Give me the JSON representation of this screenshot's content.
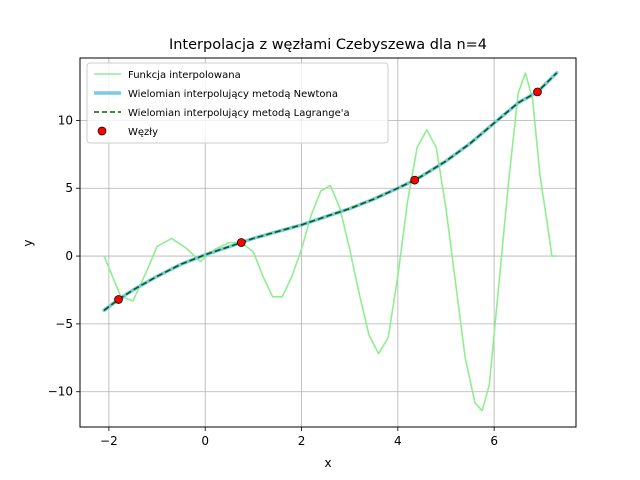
{
  "chart_data": {
    "type": "line",
    "title": "Interpolacja z węzłami Czebyszewa dla n=4",
    "xlabel": "x",
    "ylabel": "y",
    "xlim": [
      -2.6,
      7.7
    ],
    "ylim": [
      -12.6,
      14.6
    ],
    "xticks": [
      -2,
      0,
      2,
      4,
      6
    ],
    "yticks": [
      -10,
      -5,
      0,
      5,
      10
    ],
    "xtick_labels": [
      "−2",
      "0",
      "2",
      "4",
      "6"
    ],
    "ytick_labels": [
      "−10",
      "−5",
      "0",
      "5",
      "10"
    ],
    "grid": true,
    "legend_position": "top-left",
    "colors": {
      "function": "#90ee90",
      "newton": "#7ec8e3",
      "lagrange": "#006400",
      "nodes": "#ff0000",
      "grid": "#b0b0b0"
    },
    "series": [
      {
        "name": "Funkcja interpolowana",
        "style": "solid",
        "x": [
          -2.1,
          -1.75,
          -1.5,
          -1.2,
          -1.0,
          -0.7,
          -0.4,
          -0.1,
          0.2,
          0.5,
          0.75,
          1.0,
          1.2,
          1.4,
          1.6,
          1.8,
          2.0,
          2.2,
          2.4,
          2.6,
          2.8,
          3.0,
          3.2,
          3.4,
          3.6,
          3.8,
          4.0,
          4.2,
          4.4,
          4.6,
          4.8,
          5.0,
          5.2,
          5.4,
          5.6,
          5.75,
          5.9,
          6.1,
          6.3,
          6.5,
          6.65,
          6.8,
          6.95,
          7.1,
          7.2,
          7.3
        ],
        "y": [
          0.0,
          -3.0,
          -3.3,
          -1.0,
          0.7,
          1.3,
          0.6,
          -0.4,
          0.5,
          1.0,
          1.0,
          0.3,
          -1.5,
          -3.0,
          -3.0,
          -1.5,
          0.5,
          3.0,
          4.8,
          5.2,
          3.5,
          0.5,
          -2.8,
          -5.8,
          -7.2,
          -6.0,
          -1.5,
          4.0,
          8.0,
          9.3,
          8.0,
          3.5,
          -2.0,
          -7.5,
          -10.8,
          -11.4,
          -9.5,
          -2.0,
          5.5,
          12.0,
          13.5,
          11.5,
          6.0,
          2.5,
          0.0,
          0.0
        ]
      },
      {
        "name": "Wielomian interpolujący metodą Newtona",
        "style": "solid",
        "x": [
          -2.1,
          -1.8,
          -1.5,
          -1.0,
          -0.5,
          0.0,
          0.5,
          0.75,
          1.0,
          1.5,
          2.0,
          2.5,
          3.0,
          3.5,
          4.0,
          4.35,
          4.5,
          5.0,
          5.5,
          6.0,
          6.5,
          6.9,
          7.3
        ],
        "y": [
          -4.0,
          -3.2,
          -2.5,
          -1.5,
          -0.6,
          0.1,
          0.7,
          1.0,
          1.3,
          1.8,
          2.3,
          2.9,
          3.5,
          4.2,
          5.0,
          5.6,
          5.9,
          7.0,
          8.3,
          9.8,
          11.3,
          12.1,
          13.5
        ]
      },
      {
        "name": "Wielomian interpolujący metodą Lagrange'a",
        "style": "dashed",
        "x": [
          -2.1,
          -1.8,
          -1.5,
          -1.0,
          -0.5,
          0.0,
          0.5,
          0.75,
          1.0,
          1.5,
          2.0,
          2.5,
          3.0,
          3.5,
          4.0,
          4.35,
          4.5,
          5.0,
          5.5,
          6.0,
          6.5,
          6.9,
          7.3
        ],
        "y": [
          -4.0,
          -3.2,
          -2.5,
          -1.5,
          -0.6,
          0.1,
          0.7,
          1.0,
          1.3,
          1.8,
          2.3,
          2.9,
          3.5,
          4.2,
          5.0,
          5.6,
          5.9,
          7.0,
          8.3,
          9.8,
          11.3,
          12.1,
          13.5
        ]
      },
      {
        "name": "Węzły",
        "style": "markers",
        "x": [
          -1.8,
          0.75,
          4.35,
          6.9
        ],
        "y": [
          -3.2,
          1.0,
          5.6,
          12.1
        ]
      }
    ]
  }
}
